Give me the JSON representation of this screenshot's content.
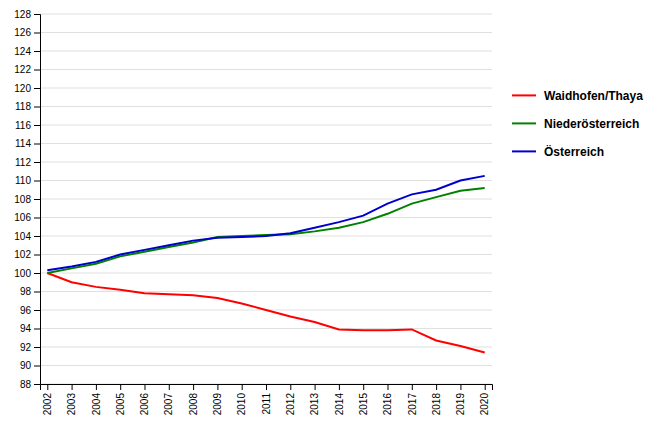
{
  "chart_data": {
    "type": "line",
    "x": [
      2002,
      2003,
      2004,
      2005,
      2006,
      2007,
      2008,
      2009,
      2010,
      2011,
      2012,
      2013,
      2014,
      2015,
      2016,
      2017,
      2018,
      2019,
      2020
    ],
    "series": [
      {
        "name": "Waidhofen/Thaya",
        "color": "#ff0000",
        "values": [
          100.0,
          99.0,
          98.5,
          98.2,
          97.8,
          97.7,
          97.6,
          97.3,
          96.7,
          96.0,
          95.3,
          94.7,
          93.9,
          93.8,
          93.8,
          93.9,
          92.7,
          92.1,
          91.4
        ]
      },
      {
        "name": "Niederösterreich",
        "color": "#008000",
        "values": [
          100.0,
          100.5,
          101.0,
          101.8,
          102.3,
          102.8,
          103.3,
          103.9,
          104.0,
          104.1,
          104.2,
          104.5,
          104.9,
          105.5,
          106.4,
          107.5,
          108.2,
          108.9,
          109.2
        ]
      },
      {
        "name": "Österreich",
        "color": "#0000cd",
        "values": [
          100.3,
          100.7,
          101.2,
          102.0,
          102.5,
          103.0,
          103.5,
          103.8,
          103.9,
          104.0,
          104.3,
          104.9,
          105.5,
          106.2,
          107.5,
          108.5,
          109.0,
          110.0,
          110.5
        ]
      }
    ],
    "xlim": [
      2001.7,
      2020.3
    ],
    "xticks": [
      2002,
      2003,
      2004,
      2005,
      2006,
      2007,
      2008,
      2009,
      2010,
      2011,
      2012,
      2013,
      2014,
      2015,
      2016,
      2017,
      2018,
      2019,
      2020
    ],
    "ylim": [
      88,
      128
    ],
    "yticks": [
      88,
      90,
      92,
      94,
      96,
      98,
      100,
      102,
      104,
      106,
      108,
      110,
      112,
      114,
      116,
      118,
      120,
      122,
      124,
      126,
      128
    ],
    "grid": "y",
    "legend": "right"
  }
}
